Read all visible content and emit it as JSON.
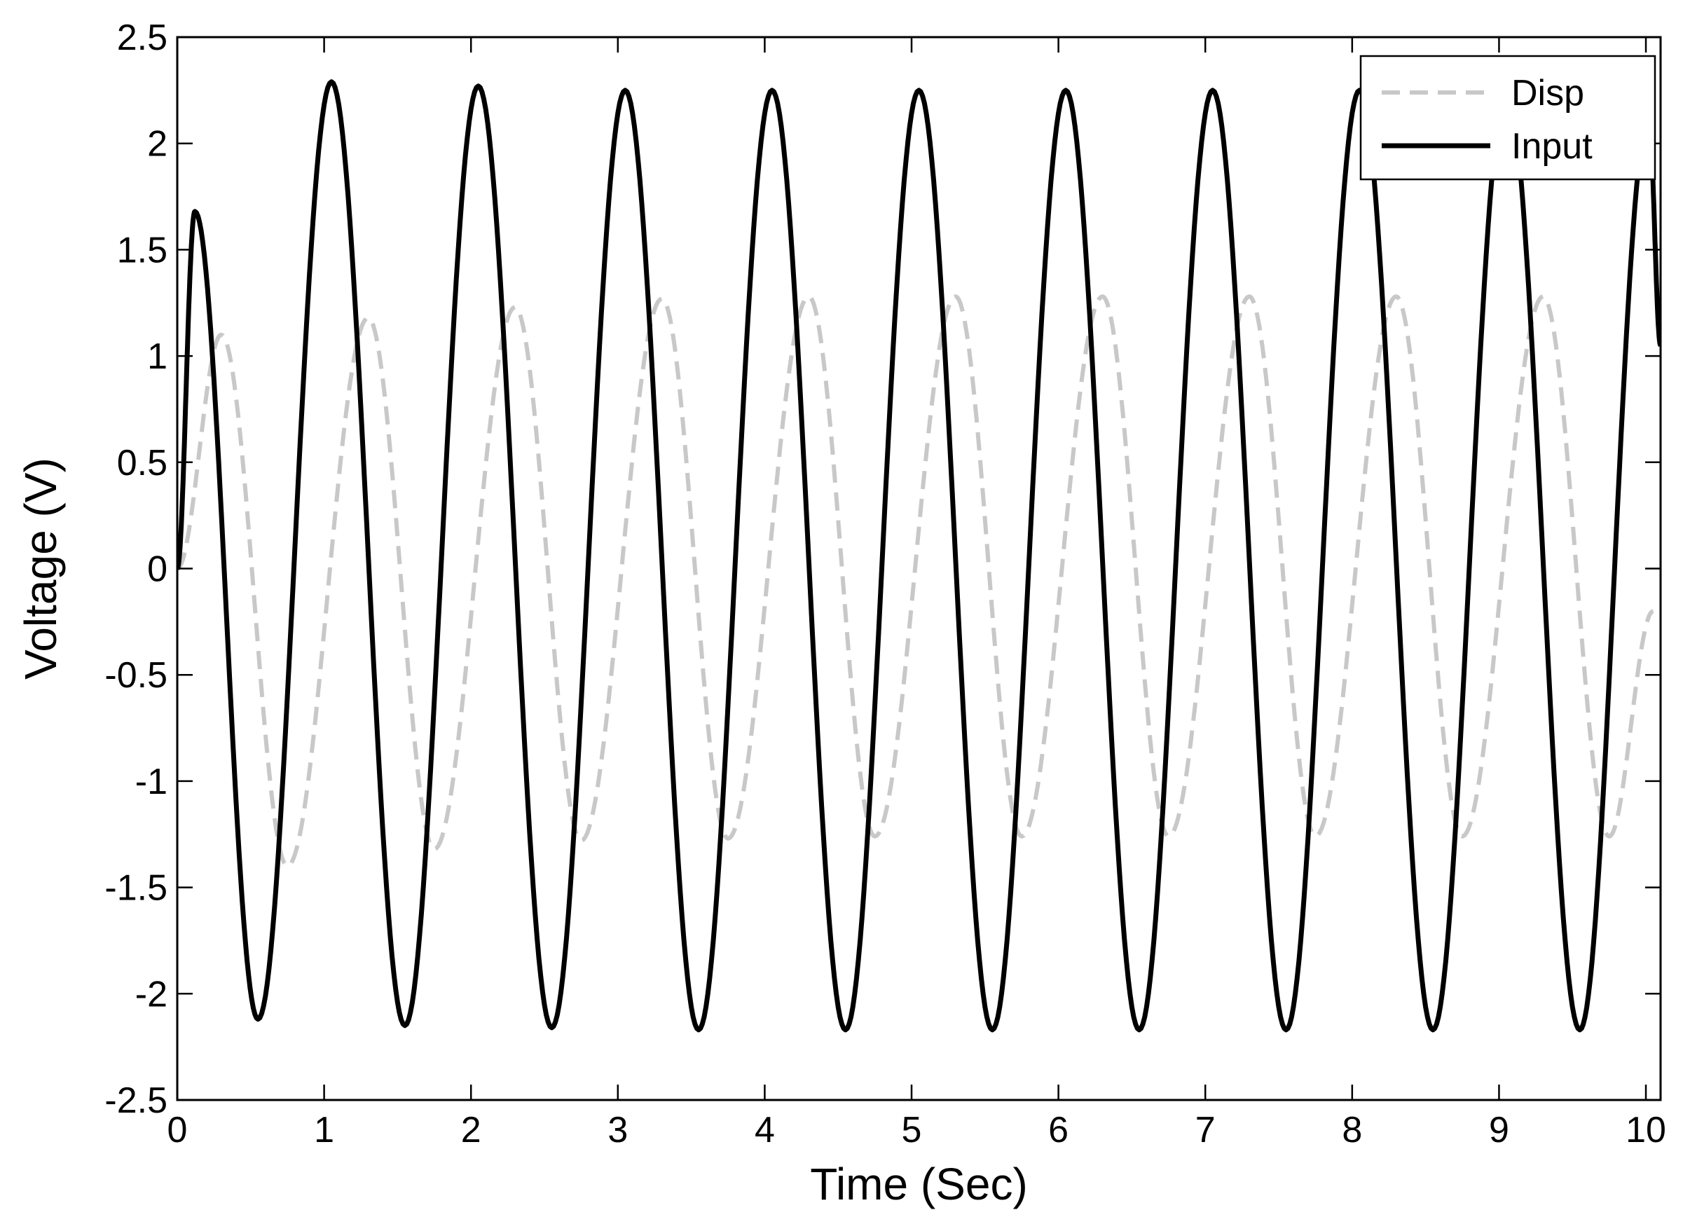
{
  "chart_data": {
    "type": "line",
    "title": "",
    "xlabel": "Time (Sec)",
    "ylabel": "Voltage (V)",
    "xlim": [
      0,
      10.1
    ],
    "ylim": [
      -2.5,
      2.5
    ],
    "x_ticks": [
      0,
      1,
      2,
      3,
      4,
      5,
      6,
      7,
      8,
      9,
      10
    ],
    "y_ticks": [
      -2.5,
      -2,
      -1.5,
      -1,
      -0.5,
      0,
      0.5,
      1,
      1.5,
      2,
      2.5
    ],
    "x_tick_labels": [
      "0",
      "1",
      "2",
      "3",
      "4",
      "5",
      "6",
      "7",
      "8",
      "9",
      "10"
    ],
    "y_tick_labels": [
      "-2.5",
      "-2",
      "-1.5",
      "-1",
      "-0.5",
      "0",
      "0.5",
      "1",
      "1.5",
      "2",
      "2.5"
    ],
    "grid": false,
    "legend_position": "top-right",
    "series": [
      {
        "name": "Disp",
        "color": "#c8c8c8",
        "style": "dashed",
        "x": [
          0,
          0.3,
          0.75,
          1.3,
          1.75,
          2.3,
          2.75,
          3.3,
          3.75,
          4.3,
          4.75,
          5.3,
          5.75,
          6.3,
          6.75,
          7.3,
          7.75,
          8.3,
          8.75,
          9.3,
          9.75,
          10.05
        ],
        "y": [
          0,
          1.1,
          -1.4,
          1.18,
          -1.32,
          1.23,
          -1.28,
          1.27,
          -1.27,
          1.28,
          -1.26,
          1.28,
          -1.26,
          1.28,
          -1.26,
          1.28,
          -1.26,
          1.28,
          -1.26,
          1.28,
          -1.26,
          -0.2
        ]
      },
      {
        "name": "Input",
        "color": "#000000",
        "style": "solid",
        "x": [
          0,
          0.12,
          0.55,
          1.05,
          1.55,
          2.05,
          2.55,
          3.05,
          3.55,
          4.05,
          4.55,
          5.05,
          5.55,
          6.05,
          6.55,
          7.05,
          7.55,
          8.05,
          8.55,
          9.05,
          9.55,
          10.02,
          10.1
        ],
        "y": [
          0,
          1.68,
          -2.12,
          2.29,
          -2.15,
          2.27,
          -2.16,
          2.25,
          -2.17,
          2.25,
          -2.17,
          2.25,
          -2.17,
          2.25,
          -2.17,
          2.25,
          -2.17,
          2.25,
          -2.17,
          2.25,
          -2.17,
          2.12,
          1.05
        ]
      }
    ]
  }
}
